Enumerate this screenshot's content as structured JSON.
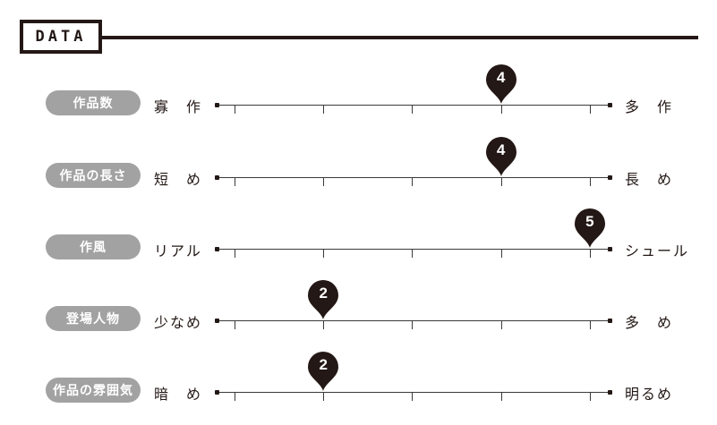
{
  "header": {
    "title": "DATA"
  },
  "rows": [
    {
      "label": "作品数",
      "left": "寡　作",
      "right": "多　作",
      "value": 4
    },
    {
      "label": "作品の長さ",
      "left": "短　め",
      "right": "長　め",
      "value": 4
    },
    {
      "label": "作風",
      "left": "リアル",
      "right": "シュール",
      "value": 5
    },
    {
      "label": "登場人物",
      "left": "少なめ",
      "right": "多　め",
      "value": 2
    },
    {
      "label": "作品の雰囲気",
      "left": "暗　め",
      "right": "明るめ",
      "value": 2
    }
  ],
  "scale": {
    "min": 0,
    "max": 5,
    "steps": 5
  },
  "colors": {
    "dark": "#231815",
    "pill": "#a2a2a2",
    "line": "#3a3a3a"
  }
}
